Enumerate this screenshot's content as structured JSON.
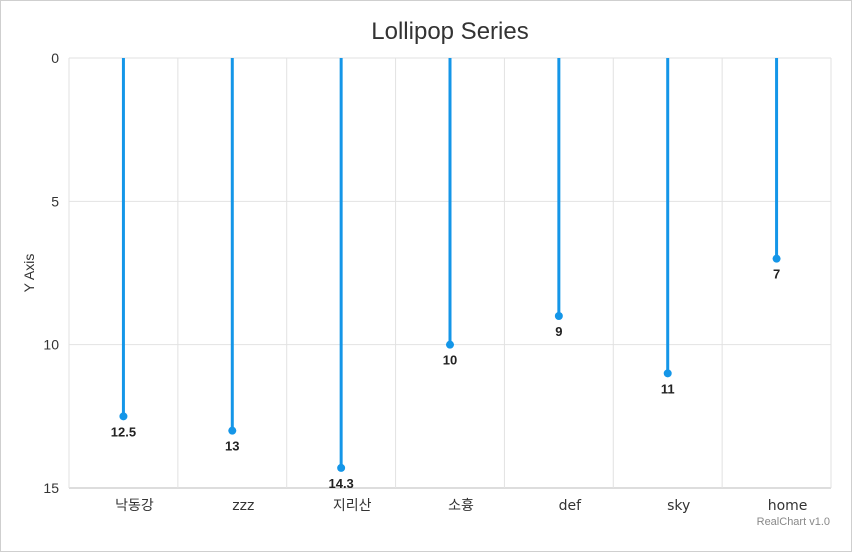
{
  "chart_data": {
    "type": "lollipop",
    "title": "Lollipop Series",
    "ylabel": "Y Axis",
    "xlabel": "",
    "y_reversed": true,
    "ylim": [
      0,
      15
    ],
    "yticks": [
      0,
      5,
      10,
      15
    ],
    "grid": true,
    "legend": "none",
    "categories": [
      "낙동강",
      "zzz",
      "지리산",
      "소흉",
      "def",
      "sky",
      "home"
    ],
    "values": [
      12.5,
      13,
      14.3,
      10,
      9,
      11,
      7
    ],
    "color": "#1496e8"
  },
  "credit": "RealChart v1.0"
}
